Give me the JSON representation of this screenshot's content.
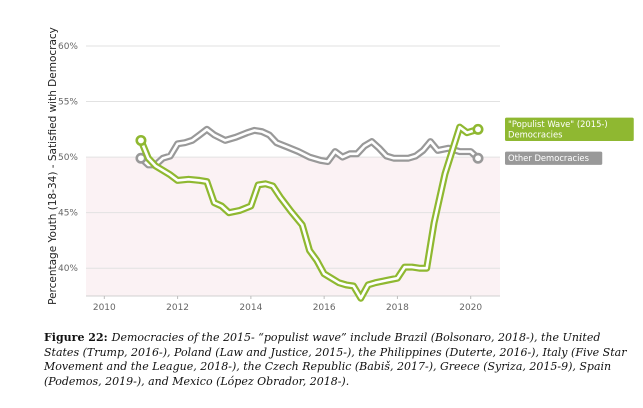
{
  "chart_data": {
    "type": "line",
    "ylabel": "Percentage Youth (18-34) - Satisfied with Democracy",
    "xlabel": "",
    "xlim": [
      2009.5,
      2020.8
    ],
    "ylim": [
      37.5,
      60
    ],
    "x_ticks": [
      "2010",
      "2012",
      "2014",
      "2016",
      "2018",
      "2020"
    ],
    "y_ticks": [
      "40%",
      "45%",
      "50%",
      "55%",
      "60%"
    ],
    "grid": "horizontal",
    "shaded_band": [
      37.5,
      50
    ],
    "series": [
      {
        "name": "\"Populist Wave\" (2015-) Democracies",
        "label_lines": [
          "\"Populist Wave\" (2015-)",
          "Democracies"
        ],
        "color": "#8fb831",
        "x": [
          2011.0,
          2011.2,
          2011.4,
          2011.6,
          2011.8,
          2012.0,
          2012.3,
          2012.6,
          2012.8,
          2013.0,
          2013.2,
          2013.4,
          2013.7,
          2014.0,
          2014.2,
          2014.4,
          2014.6,
          2014.8,
          2015.1,
          2015.4,
          2015.6,
          2015.8,
          2016.0,
          2016.2,
          2016.4,
          2016.6,
          2016.8,
          2017.0,
          2017.2,
          2017.4,
          2017.7,
          2018.0,
          2018.2,
          2018.4,
          2018.6,
          2018.8,
          2019.0,
          2019.3,
          2019.7,
          2019.9,
          2020.2
        ],
        "values": [
          51.5,
          49.9,
          49.2,
          48.8,
          48.4,
          47.9,
          48.0,
          47.9,
          47.8,
          45.9,
          45.6,
          45.0,
          45.2,
          45.6,
          47.5,
          47.6,
          47.4,
          46.4,
          45.1,
          43.9,
          41.6,
          40.7,
          39.5,
          39.1,
          38.7,
          38.5,
          38.4,
          37.3,
          38.5,
          38.7,
          38.9,
          39.1,
          40.1,
          40.1,
          40.0,
          40.0,
          44.1,
          48.5,
          52.7,
          52.2,
          52.5
        ]
      },
      {
        "name": "Other Democracies",
        "label_lines": [
          "Other Democracies"
        ],
        "color": "#999999",
        "x": [
          2011.0,
          2011.2,
          2011.4,
          2011.6,
          2011.8,
          2012.0,
          2012.2,
          2012.4,
          2012.6,
          2012.8,
          2013.0,
          2013.3,
          2013.6,
          2013.9,
          2014.1,
          2014.3,
          2014.5,
          2014.7,
          2015.0,
          2015.3,
          2015.6,
          2015.9,
          2016.1,
          2016.3,
          2016.5,
          2016.7,
          2016.9,
          2017.1,
          2017.3,
          2017.5,
          2017.7,
          2017.9,
          2018.1,
          2018.3,
          2018.5,
          2018.7,
          2018.9,
          2019.1,
          2019.4,
          2019.7,
          2020.0,
          2020.2
        ],
        "values": [
          49.9,
          49.3,
          49.3,
          49.9,
          50.1,
          51.2,
          51.3,
          51.5,
          52.0,
          52.5,
          52.0,
          51.5,
          51.8,
          52.2,
          52.4,
          52.3,
          52.0,
          51.3,
          50.9,
          50.5,
          50.0,
          49.7,
          49.6,
          50.5,
          50.0,
          50.3,
          50.3,
          51.0,
          51.4,
          50.8,
          50.1,
          49.9,
          49.9,
          49.9,
          50.1,
          50.6,
          51.4,
          50.6,
          50.8,
          50.5,
          50.5,
          49.9
        ]
      }
    ]
  },
  "caption": {
    "label": "Figure 22:",
    "text": "Democracies of the 2015- “populist wave” include Brazil (Bolsonaro, 2018-), the United States (Trump, 2016-), Poland (Law and Justice, 2015-), the Philippines (Duterte, 2016-), Italy (Five Star Movement and the League, 2018-), the Czech Republic (Babiš, 2017-), Greece (Syriza, 2015-9), Spain (Podemos, 2019-), and Mexico (López Obrador, 2018-)."
  }
}
